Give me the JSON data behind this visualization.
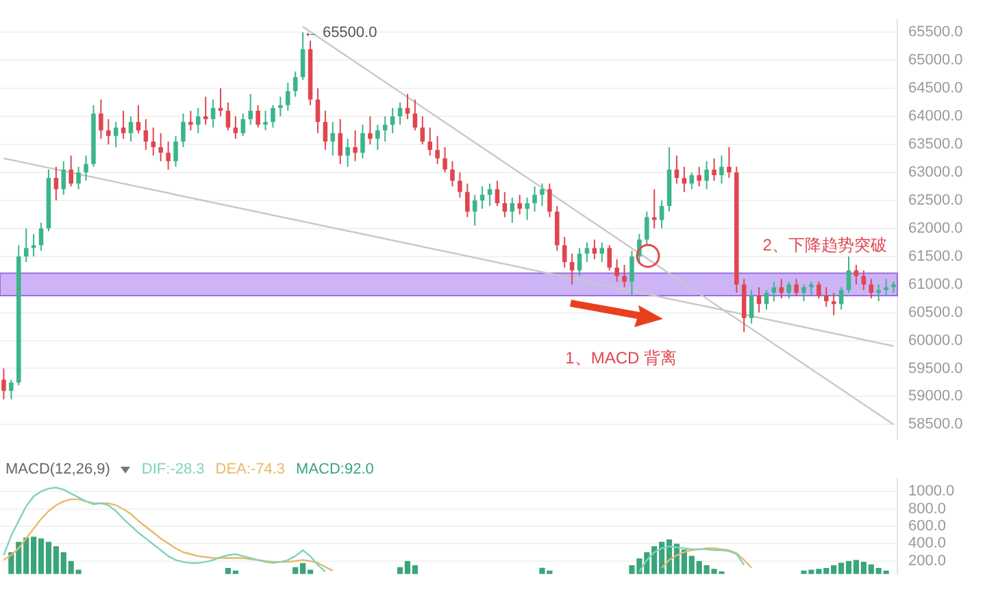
{
  "chart_data": [
    {
      "type": "candlestick",
      "categories": [
        null,
        null,
        null,
        null,
        null,
        null,
        null,
        null,
        null,
        null,
        null,
        null,
        null,
        null,
        null,
        null,
        null,
        null,
        null,
        null,
        null,
        null,
        null,
        null,
        null,
        null,
        null,
        null,
        null,
        null,
        null,
        null,
        null,
        null,
        null,
        null,
        null,
        null,
        null,
        null,
        null,
        null,
        null,
        null,
        null,
        null,
        null,
        null,
        null,
        null,
        null,
        null,
        null,
        null,
        null,
        null,
        null,
        null,
        null,
        null,
        null,
        null,
        null,
        null,
        null,
        null,
        null,
        null,
        null,
        null,
        null,
        null,
        null,
        null,
        null,
        null,
        null,
        null,
        null,
        null,
        null,
        null,
        null,
        null,
        null,
        null,
        null,
        null,
        null,
        null,
        null,
        null,
        null,
        null,
        null,
        null,
        null,
        null,
        null,
        null,
        null,
        null,
        null,
        null,
        null,
        null,
        null,
        null,
        null,
        null,
        null,
        null,
        null,
        null,
        null,
        null,
        null,
        null,
        null,
        null
      ],
      "ohlc": [
        [
          59300,
          59500,
          58950,
          59100
        ],
        [
          59100,
          59300,
          58950,
          59250
        ],
        [
          59250,
          61700,
          59200,
          61500
        ],
        [
          61500,
          62000,
          61400,
          61650
        ],
        [
          61650,
          61900,
          61500,
          61700
        ],
        [
          61700,
          62100,
          61600,
          62000
        ],
        [
          62000,
          63050,
          61950,
          62900
        ],
        [
          62900,
          63100,
          62500,
          62700
        ],
        [
          62700,
          63200,
          62600,
          63050
        ],
        [
          63050,
          63300,
          62750,
          62800
        ],
        [
          62800,
          63100,
          62700,
          63000
        ],
        [
          63000,
          63300,
          62850,
          63150
        ],
        [
          63150,
          64200,
          63100,
          64050
        ],
        [
          64050,
          64300,
          63600,
          63750
        ],
        [
          63750,
          63950,
          63500,
          63650
        ],
        [
          63650,
          63900,
          63450,
          63800
        ],
        [
          63800,
          64100,
          63600,
          63700
        ],
        [
          63700,
          64000,
          63550,
          63900
        ],
        [
          63900,
          64200,
          63700,
          63750
        ],
        [
          63750,
          63950,
          63400,
          63550
        ],
        [
          63550,
          63800,
          63300,
          63450
        ],
        [
          63450,
          63700,
          63200,
          63350
        ],
        [
          63350,
          63550,
          63050,
          63200
        ],
        [
          63200,
          63650,
          63100,
          63550
        ],
        [
          63550,
          64050,
          63450,
          63900
        ],
        [
          63900,
          64100,
          63750,
          63850
        ],
        [
          63850,
          64150,
          63700,
          64000
        ],
        [
          64000,
          64350,
          63850,
          63950
        ],
        [
          63950,
          64300,
          63800,
          64150
        ],
        [
          64150,
          64500,
          64000,
          64100
        ],
        [
          64100,
          64250,
          63750,
          63800
        ],
        [
          63800,
          64000,
          63600,
          63700
        ],
        [
          63700,
          64050,
          63650,
          63950
        ],
        [
          63950,
          64400,
          63850,
          64100
        ],
        [
          64100,
          64200,
          63800,
          63850
        ],
        [
          63850,
          64100,
          63750,
          63900
        ],
        [
          63900,
          64200,
          63800,
          64150
        ],
        [
          64150,
          64350,
          64000,
          64200
        ],
        [
          64200,
          64600,
          64100,
          64450
        ],
        [
          64450,
          64800,
          64350,
          64700
        ],
        [
          64700,
          65500,
          64650,
          65200
        ],
        [
          65200,
          65350,
          64200,
          64300
        ],
        [
          64300,
          64500,
          63700,
          63900
        ],
        [
          63900,
          64100,
          63400,
          63550
        ],
        [
          63550,
          63900,
          63300,
          63700
        ],
        [
          63700,
          63950,
          63150,
          63300
        ],
        [
          63300,
          63600,
          63100,
          63450
        ],
        [
          63450,
          63750,
          63200,
          63350
        ],
        [
          63350,
          63850,
          63250,
          63700
        ],
        [
          63700,
          64000,
          63500,
          63600
        ],
        [
          63600,
          63850,
          63400,
          63750
        ],
        [
          63750,
          64000,
          63550,
          63850
        ],
        [
          63850,
          64150,
          63700,
          64000
        ],
        [
          64000,
          64250,
          63850,
          64150
        ],
        [
          64150,
          64400,
          63950,
          64050
        ],
        [
          64050,
          64300,
          63750,
          63800
        ],
        [
          63800,
          64000,
          63500,
          63550
        ],
        [
          63550,
          63800,
          63300,
          63400
        ],
        [
          63400,
          63650,
          63150,
          63250
        ],
        [
          63250,
          63450,
          63000,
          63050
        ],
        [
          63050,
          63200,
          62750,
          62850
        ],
        [
          62850,
          63000,
          62550,
          62650
        ],
        [
          62650,
          62800,
          62200,
          62300
        ],
        [
          62300,
          62600,
          62050,
          62500
        ],
        [
          62500,
          62750,
          62350,
          62600
        ],
        [
          62600,
          62800,
          62400,
          62700
        ],
        [
          62700,
          62850,
          62400,
          62450
        ],
        [
          62450,
          62650,
          62200,
          62300
        ],
        [
          62300,
          62550,
          62100,
          62450
        ],
        [
          62450,
          62600,
          62250,
          62350
        ],
        [
          62350,
          62550,
          62150,
          62450
        ],
        [
          62450,
          62750,
          62300,
          62600
        ],
        [
          62600,
          62800,
          62400,
          62700
        ],
        [
          62700,
          62800,
          62200,
          62300
        ],
        [
          62300,
          62400,
          61600,
          61700
        ],
        [
          61700,
          61850,
          61300,
          61400
        ],
        [
          61400,
          61550,
          61000,
          61250
        ],
        [
          61250,
          61650,
          61150,
          61550
        ],
        [
          61550,
          61750,
          61400,
          61650
        ],
        [
          61650,
          61800,
          61450,
          61550
        ],
        [
          61550,
          61750,
          61400,
          61650
        ],
        [
          61650,
          61700,
          61250,
          61300
        ],
        [
          61300,
          61450,
          61050,
          61150
        ],
        [
          61150,
          61350,
          60950,
          61050
        ],
        [
          61050,
          61600,
          60800,
          61500
        ],
        [
          61500,
          61900,
          61400,
          61800
        ],
        [
          61800,
          62300,
          61700,
          62200
        ],
        [
          62200,
          62700,
          62000,
          62150
        ],
        [
          62150,
          62500,
          62000,
          62400
        ],
        [
          62400,
          63450,
          62300,
          63050
        ],
        [
          63050,
          63300,
          62800,
          62900
        ],
        [
          62900,
          63100,
          62650,
          62800
        ],
        [
          62800,
          63000,
          62700,
          62950
        ],
        [
          62950,
          63100,
          62750,
          62850
        ],
        [
          62850,
          63200,
          62700,
          63050
        ],
        [
          63050,
          63250,
          62850,
          62950
        ],
        [
          62950,
          63300,
          62800,
          63100
        ],
        [
          63100,
          63450,
          62900,
          63000
        ],
        [
          63000,
          63100,
          60850,
          61000
        ],
        [
          61000,
          61100,
          60150,
          60400
        ],
        [
          60400,
          60900,
          60300,
          60800
        ],
        [
          60800,
          60950,
          60500,
          60650
        ],
        [
          60650,
          60900,
          60550,
          60850
        ],
        [
          60850,
          61050,
          60700,
          60950
        ],
        [
          60950,
          61100,
          60750,
          60850
        ],
        [
          60850,
          61050,
          60750,
          61000
        ],
        [
          61000,
          61100,
          60800,
          60850
        ],
        [
          60850,
          61000,
          60700,
          60950
        ],
        [
          60950,
          61050,
          60800,
          61000
        ],
        [
          61000,
          61050,
          60750,
          60800
        ],
        [
          60800,
          60950,
          60600,
          60700
        ],
        [
          60700,
          60850,
          60450,
          60650
        ],
        [
          60650,
          60950,
          60550,
          60900
        ],
        [
          60900,
          61500,
          60850,
          61250
        ],
        [
          61250,
          61350,
          61000,
          61150
        ],
        [
          61150,
          61250,
          60900,
          61000
        ],
        [
          61000,
          61100,
          60750,
          60850
        ],
        [
          60850,
          61000,
          60700,
          60900
        ],
        [
          60900,
          61100,
          60800,
          60950
        ],
        [
          60950,
          61050,
          60850,
          61000
        ]
      ],
      "series": [
        {
          "type": "line",
          "color": "#c8c8c8",
          "values": [
            null,
            null,
            null,
            null,
            null,
            null,
            null,
            null,
            null,
            null,
            null,
            null,
            null,
            null,
            null,
            null,
            null,
            null,
            null,
            null,
            null,
            null,
            null,
            null,
            null,
            null,
            null,
            null,
            null,
            null,
            null,
            null,
            null,
            null,
            null,
            null,
            null,
            null,
            null,
            null,
            65600,
            null,
            null,
            null,
            null,
            null,
            null,
            null,
            null,
            null,
            null,
            null,
            null,
            null,
            null,
            null,
            null,
            null,
            null,
            null,
            null,
            null,
            null,
            null,
            null,
            null,
            null,
            null,
            null,
            null,
            null,
            null,
            null,
            null,
            null,
            null,
            null,
            null,
            null,
            null,
            null,
            null,
            null,
            null,
            null,
            null,
            null,
            null,
            null,
            null,
            null,
            null,
            null,
            null,
            null,
            null,
            null,
            null,
            null,
            null,
            null,
            null,
            null,
            null,
            null,
            null,
            null,
            null,
            null,
            null,
            null,
            null,
            null,
            null,
            null,
            null,
            null,
            null,
            null,
            58500
          ]
        },
        {
          "type": "line",
          "color": "#c8c8c8",
          "values": [
            63250,
            null,
            null,
            null,
            null,
            null,
            null,
            null,
            null,
            null,
            null,
            null,
            null,
            null,
            null,
            null,
            null,
            null,
            null,
            null,
            null,
            null,
            null,
            null,
            null,
            null,
            null,
            null,
            null,
            null,
            null,
            null,
            null,
            null,
            null,
            null,
            null,
            null,
            null,
            null,
            null,
            null,
            null,
            null,
            null,
            null,
            null,
            null,
            null,
            null,
            null,
            null,
            null,
            null,
            null,
            null,
            null,
            null,
            null,
            null,
            null,
            null,
            null,
            null,
            null,
            null,
            null,
            null,
            null,
            null,
            null,
            null,
            null,
            null,
            null,
            null,
            null,
            null,
            null,
            null,
            null,
            null,
            null,
            null,
            null,
            null,
            null,
            null,
            null,
            null,
            null,
            null,
            null,
            null,
            null,
            null,
            null,
            null,
            null,
            null,
            null,
            null,
            null,
            null,
            null,
            null,
            null,
            null,
            null,
            null,
            null,
            null,
            null,
            null,
            null,
            null,
            null,
            null,
            null,
            59900
          ]
        }
      ],
      "bands": [
        {
          "axis": "y",
          "from": 60800,
          "to": 61200,
          "color": "#cdb4f7"
        }
      ],
      "annotations": [
        "← 65500.0",
        "1、MACD 背离",
        "2、下降趋势突破"
      ],
      "ylim": [
        58250,
        65720
      ],
      "yticks": [
        {
          "value": 58500,
          "label": "58500.0"
        },
        {
          "value": 59000,
          "label": "59000.0"
        },
        {
          "value": 59500,
          "label": "59500.0"
        },
        {
          "value": 60000,
          "label": "60000.0"
        },
        {
          "value": 60500,
          "label": "60500.0"
        },
        {
          "value": 61000,
          "label": "61000.0"
        },
        {
          "value": 61500,
          "label": "61500.0"
        },
        {
          "value": 62000,
          "label": "62000.0"
        },
        {
          "value": 62500,
          "label": "62500.0"
        },
        {
          "value": 63000,
          "label": "63000.0"
        },
        {
          "value": 63500,
          "label": "63500.0"
        },
        {
          "value": 64000,
          "label": "64000.0"
        },
        {
          "value": 64500,
          "label": "64500.0"
        },
        {
          "value": 65000,
          "label": "65000.0"
        },
        {
          "value": 65500,
          "label": "65500.0"
        }
      ],
      "grid": "y",
      "tick_labels": "y"
    },
    {
      "type": "line",
      "title": "MACD(12,26,9)",
      "categories": [
        null,
        null,
        null,
        null,
        null,
        null,
        null,
        null,
        null,
        null,
        null,
        null,
        null,
        null,
        null,
        null,
        null,
        null,
        null,
        null,
        null,
        null,
        null,
        null,
        null,
        null,
        null,
        null,
        null,
        null,
        null,
        null,
        null,
        null,
        null,
        null,
        null,
        null,
        null,
        null,
        null,
        null,
        null,
        null,
        null,
        null,
        null,
        null,
        null,
        null,
        null,
        null,
        null,
        null,
        null,
        null,
        null,
        null,
        null,
        null,
        null,
        null,
        null,
        null,
        null,
        null,
        null,
        null,
        null,
        null,
        null,
        null,
        null,
        null,
        null,
        null,
        null,
        null,
        null,
        null,
        null,
        null,
        null,
        null,
        null,
        null,
        null,
        null,
        null,
        null,
        null,
        null,
        null,
        null,
        null,
        null,
        null,
        null,
        null,
        null,
        null,
        null,
        null,
        null,
        null,
        null,
        null,
        null,
        null,
        null,
        null,
        null,
        null,
        null,
        null,
        null,
        null,
        null,
        null,
        null
      ],
      "series": [
        {
          "name": "DIF:-28.3",
          "type": "line",
          "color": "#7fd4b8",
          "values": [
            267,
            493,
            662,
            831,
            944,
            1000,
            1034,
            1045,
            1023,
            977,
            932,
            887,
            853,
            865,
            842,
            775,
            684,
            606,
            527,
            459,
            391,
            324,
            256,
            211,
            189,
            177,
            177,
            189,
            211,
            245,
            267,
            279,
            256,
            234,
            211,
            189,
            177,
            189,
            211,
            256,
            324,
            256,
            155,
            76,
            null,
            null,
            null,
            null,
            null,
            null,
            null,
            null,
            null,
            null,
            null,
            null,
            null,
            null,
            null,
            null,
            null,
            null,
            null,
            null,
            null,
            null,
            null,
            null,
            null,
            null,
            null,
            null,
            null,
            null,
            null,
            null,
            null,
            null,
            null,
            null,
            null,
            null,
            null,
            null,
            null,
            76,
            211,
            301,
            346,
            369,
            358,
            346,
            335,
            335,
            335,
            324,
            324,
            313,
            279,
            155,
            null,
            null,
            null,
            null,
            null,
            null,
            null,
            null,
            null,
            null,
            null,
            null,
            null,
            null,
            null,
            null,
            null,
            null,
            null,
            null
          ]
        },
        {
          "name": "DEA:-74.3",
          "type": "line",
          "color": "#e8b86a",
          "values": [
            211,
            267,
            346,
            459,
            572,
            684,
            775,
            842,
            887,
            910,
            910,
            887,
            865,
            865,
            865,
            842,
            797,
            741,
            662,
            594,
            527,
            459,
            403,
            346,
            301,
            279,
            256,
            245,
            234,
            234,
            234,
            234,
            234,
            222,
            211,
            200,
            189,
            189,
            189,
            200,
            211,
            200,
            177,
            132,
            87,
            null,
            null,
            null,
            null,
            null,
            null,
            null,
            null,
            null,
            null,
            null,
            null,
            null,
            null,
            null,
            null,
            null,
            null,
            null,
            null,
            null,
            null,
            null,
            null,
            null,
            null,
            null,
            null,
            null,
            null,
            null,
            null,
            null,
            null,
            null,
            null,
            null,
            null,
            null,
            null,
            null,
            null,
            null,
            121,
            211,
            267,
            301,
            324,
            335,
            346,
            346,
            335,
            324,
            290,
            211,
            121,
            null,
            null,
            null,
            null,
            null,
            null,
            null,
            null,
            null,
            null,
            null,
            null,
            null,
            null,
            null,
            null,
            null,
            null,
            null
          ]
        },
        {
          "name": "MACD:92.0",
          "type": "bar",
          "color": "#3aa57a",
          "values": [
            null,
            300,
            420,
            470,
            480,
            460,
            420,
            370,
            300,
            200,
            100,
            null,
            null,
            null,
            null,
            null,
            null,
            null,
            null,
            null,
            null,
            null,
            null,
            null,
            null,
            null,
            null,
            null,
            null,
            null,
            120,
            90,
            null,
            null,
            null,
            null,
            null,
            null,
            null,
            130,
            177,
            100,
            null,
            null,
            null,
            null,
            null,
            null,
            null,
            null,
            null,
            null,
            null,
            130,
            200,
            150,
            null,
            null,
            null,
            null,
            null,
            null,
            null,
            null,
            null,
            null,
            null,
            null,
            null,
            null,
            null,
            null,
            121,
            90,
            null,
            null,
            null,
            null,
            null,
            null,
            null,
            null,
            null,
            null,
            150,
            230,
            300,
            370,
            420,
            448,
            400,
            330,
            260,
            200,
            150,
            110,
            80,
            null,
            null,
            null,
            null,
            null,
            null,
            null,
            null,
            null,
            null,
            90,
            100,
            110,
            120,
            150,
            180,
            200,
            211,
            190,
            160,
            120,
            90,
            null
          ]
        }
      ],
      "ylim": [
        50,
        1150
      ],
      "yticks": [
        {
          "value": 200,
          "label": "200.0"
        },
        {
          "value": 400,
          "label": "400.0"
        },
        {
          "value": 600,
          "label": "600.0"
        },
        {
          "value": 800,
          "label": "800.0"
        },
        {
          "value": 1000,
          "label": "1000.0"
        }
      ],
      "grid": "y",
      "legend": "top left",
      "tick_labels": "y"
    }
  ]
}
